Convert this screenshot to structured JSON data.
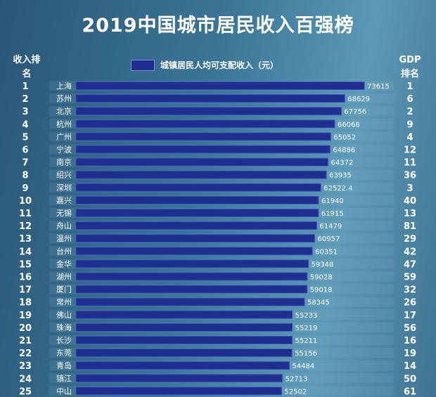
{
  "title": "2019中国城市居民收入百强榜",
  "header": {
    "income_rank_label": "收入排名",
    "gdp_rank_label": "GDP排名"
  },
  "colors": {
    "bar": "#1f2f8f",
    "bar_highlight": "#3e53b8",
    "row_band": "#9cc4dc"
  },
  "chart_data": {
    "type": "bar",
    "orientation": "horizontal",
    "title": "2019中国城市居民收入百强榜",
    "series": [
      {
        "name": "城镇居民人均可支配收入（元）",
        "values": [
          73615,
          68629,
          67756,
          66068,
          65052,
          64886,
          64372,
          63935,
          62522.4,
          61940,
          61915,
          61479,
          60957,
          60351,
          59348,
          59028,
          59018,
          58345,
          55233,
          55219,
          55211,
          55156,
          54484,
          52713,
          52502
        ]
      }
    ],
    "categories": [
      "上海",
      "苏州",
      "北京",
      "杭州",
      "广州",
      "宁波",
      "南京",
      "绍兴",
      "深圳",
      "嘉兴",
      "无锡",
      "舟山",
      "温州",
      "台州",
      "金华",
      "湖州",
      "厦门",
      "常州",
      "佛山",
      "珠海",
      "长沙",
      "东莞",
      "青岛",
      "镇江",
      "中山"
    ],
    "value_labels": [
      "73615",
      "68629",
      "67756",
      "66068",
      "65052",
      "64886",
      "64372",
      "63935",
      "62522.4",
      "61940",
      "61915",
      "61479",
      "60957",
      "60351",
      "59348",
      "59028",
      "59018",
      "58345",
      "55233",
      "55219",
      "55211",
      "55156",
      "54484",
      "52713",
      "52502"
    ],
    "income_rank": [
      "1",
      "2",
      "3",
      "4",
      "5",
      "6",
      "7",
      "8",
      "9",
      "10",
      "11",
      "12",
      "13",
      "14",
      "15",
      "16",
      "17",
      "18",
      "19",
      "20",
      "21",
      "22",
      "23",
      "24",
      "25"
    ],
    "gdp_rank": [
      "1",
      "6",
      "2",
      "9",
      "4",
      "12",
      "11",
      "36",
      "3",
      "40",
      "13",
      "81",
      "29",
      "42",
      "47",
      "59",
      "32",
      "26",
      "17",
      "56",
      "16",
      "19",
      "14",
      "50",
      "61"
    ],
    "legend_position": "top-center",
    "grid": false
  }
}
